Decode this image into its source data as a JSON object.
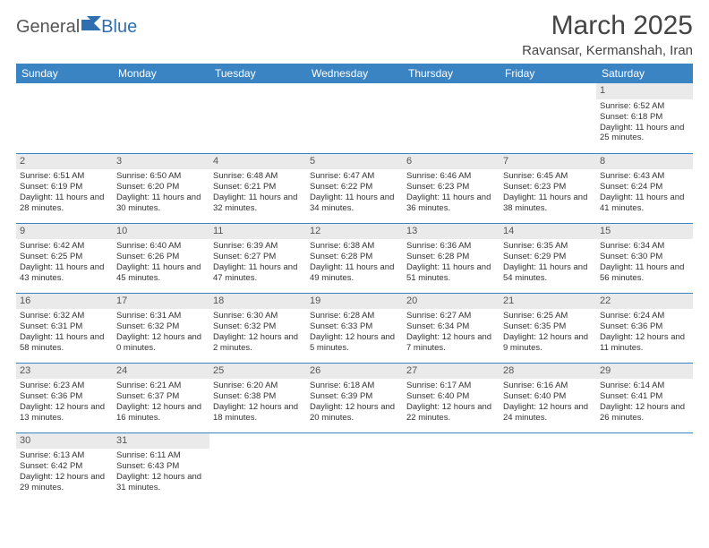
{
  "brand": {
    "part1": "General",
    "part2": "Blue"
  },
  "title": "March 2025",
  "location": "Ravansar, Kermanshah, Iran",
  "colors": {
    "header_bg": "#3b84c4",
    "header_text": "#ffffff",
    "daynum_bg": "#eaeaea",
    "border": "#3b84c4",
    "brand_gray": "#555555",
    "brand_blue": "#2f6fb0"
  },
  "days_of_week": [
    "Sunday",
    "Monday",
    "Tuesday",
    "Wednesday",
    "Thursday",
    "Friday",
    "Saturday"
  ],
  "weeks": [
    [
      {
        "n": "",
        "lines": []
      },
      {
        "n": "",
        "lines": []
      },
      {
        "n": "",
        "lines": []
      },
      {
        "n": "",
        "lines": []
      },
      {
        "n": "",
        "lines": []
      },
      {
        "n": "",
        "lines": []
      },
      {
        "n": "1",
        "lines": [
          "Sunrise: 6:52 AM",
          "Sunset: 6:18 PM",
          "Daylight: 11 hours and 25 minutes."
        ]
      }
    ],
    [
      {
        "n": "2",
        "lines": [
          "Sunrise: 6:51 AM",
          "Sunset: 6:19 PM",
          "Daylight: 11 hours and 28 minutes."
        ]
      },
      {
        "n": "3",
        "lines": [
          "Sunrise: 6:50 AM",
          "Sunset: 6:20 PM",
          "Daylight: 11 hours and 30 minutes."
        ]
      },
      {
        "n": "4",
        "lines": [
          "Sunrise: 6:48 AM",
          "Sunset: 6:21 PM",
          "Daylight: 11 hours and 32 minutes."
        ]
      },
      {
        "n": "5",
        "lines": [
          "Sunrise: 6:47 AM",
          "Sunset: 6:22 PM",
          "Daylight: 11 hours and 34 minutes."
        ]
      },
      {
        "n": "6",
        "lines": [
          "Sunrise: 6:46 AM",
          "Sunset: 6:23 PM",
          "Daylight: 11 hours and 36 minutes."
        ]
      },
      {
        "n": "7",
        "lines": [
          "Sunrise: 6:45 AM",
          "Sunset: 6:23 PM",
          "Daylight: 11 hours and 38 minutes."
        ]
      },
      {
        "n": "8",
        "lines": [
          "Sunrise: 6:43 AM",
          "Sunset: 6:24 PM",
          "Daylight: 11 hours and 41 minutes."
        ]
      }
    ],
    [
      {
        "n": "9",
        "lines": [
          "Sunrise: 6:42 AM",
          "Sunset: 6:25 PM",
          "Daylight: 11 hours and 43 minutes."
        ]
      },
      {
        "n": "10",
        "lines": [
          "Sunrise: 6:40 AM",
          "Sunset: 6:26 PM",
          "Daylight: 11 hours and 45 minutes."
        ]
      },
      {
        "n": "11",
        "lines": [
          "Sunrise: 6:39 AM",
          "Sunset: 6:27 PM",
          "Daylight: 11 hours and 47 minutes."
        ]
      },
      {
        "n": "12",
        "lines": [
          "Sunrise: 6:38 AM",
          "Sunset: 6:28 PM",
          "Daylight: 11 hours and 49 minutes."
        ]
      },
      {
        "n": "13",
        "lines": [
          "Sunrise: 6:36 AM",
          "Sunset: 6:28 PM",
          "Daylight: 11 hours and 51 minutes."
        ]
      },
      {
        "n": "14",
        "lines": [
          "Sunrise: 6:35 AM",
          "Sunset: 6:29 PM",
          "Daylight: 11 hours and 54 minutes."
        ]
      },
      {
        "n": "15",
        "lines": [
          "Sunrise: 6:34 AM",
          "Sunset: 6:30 PM",
          "Daylight: 11 hours and 56 minutes."
        ]
      }
    ],
    [
      {
        "n": "16",
        "lines": [
          "Sunrise: 6:32 AM",
          "Sunset: 6:31 PM",
          "Daylight: 11 hours and 58 minutes."
        ]
      },
      {
        "n": "17",
        "lines": [
          "Sunrise: 6:31 AM",
          "Sunset: 6:32 PM",
          "Daylight: 12 hours and 0 minutes."
        ]
      },
      {
        "n": "18",
        "lines": [
          "Sunrise: 6:30 AM",
          "Sunset: 6:32 PM",
          "Daylight: 12 hours and 2 minutes."
        ]
      },
      {
        "n": "19",
        "lines": [
          "Sunrise: 6:28 AM",
          "Sunset: 6:33 PM",
          "Daylight: 12 hours and 5 minutes."
        ]
      },
      {
        "n": "20",
        "lines": [
          "Sunrise: 6:27 AM",
          "Sunset: 6:34 PM",
          "Daylight: 12 hours and 7 minutes."
        ]
      },
      {
        "n": "21",
        "lines": [
          "Sunrise: 6:25 AM",
          "Sunset: 6:35 PM",
          "Daylight: 12 hours and 9 minutes."
        ]
      },
      {
        "n": "22",
        "lines": [
          "Sunrise: 6:24 AM",
          "Sunset: 6:36 PM",
          "Daylight: 12 hours and 11 minutes."
        ]
      }
    ],
    [
      {
        "n": "23",
        "lines": [
          "Sunrise: 6:23 AM",
          "Sunset: 6:36 PM",
          "Daylight: 12 hours and 13 minutes."
        ]
      },
      {
        "n": "24",
        "lines": [
          "Sunrise: 6:21 AM",
          "Sunset: 6:37 PM",
          "Daylight: 12 hours and 16 minutes."
        ]
      },
      {
        "n": "25",
        "lines": [
          "Sunrise: 6:20 AM",
          "Sunset: 6:38 PM",
          "Daylight: 12 hours and 18 minutes."
        ]
      },
      {
        "n": "26",
        "lines": [
          "Sunrise: 6:18 AM",
          "Sunset: 6:39 PM",
          "Daylight: 12 hours and 20 minutes."
        ]
      },
      {
        "n": "27",
        "lines": [
          "Sunrise: 6:17 AM",
          "Sunset: 6:40 PM",
          "Daylight: 12 hours and 22 minutes."
        ]
      },
      {
        "n": "28",
        "lines": [
          "Sunrise: 6:16 AM",
          "Sunset: 6:40 PM",
          "Daylight: 12 hours and 24 minutes."
        ]
      },
      {
        "n": "29",
        "lines": [
          "Sunrise: 6:14 AM",
          "Sunset: 6:41 PM",
          "Daylight: 12 hours and 26 minutes."
        ]
      }
    ],
    [
      {
        "n": "30",
        "lines": [
          "Sunrise: 6:13 AM",
          "Sunset: 6:42 PM",
          "Daylight: 12 hours and 29 minutes."
        ]
      },
      {
        "n": "31",
        "lines": [
          "Sunrise: 6:11 AM",
          "Sunset: 6:43 PM",
          "Daylight: 12 hours and 31 minutes."
        ]
      },
      {
        "n": "",
        "lines": []
      },
      {
        "n": "",
        "lines": []
      },
      {
        "n": "",
        "lines": []
      },
      {
        "n": "",
        "lines": []
      },
      {
        "n": "",
        "lines": []
      }
    ]
  ]
}
